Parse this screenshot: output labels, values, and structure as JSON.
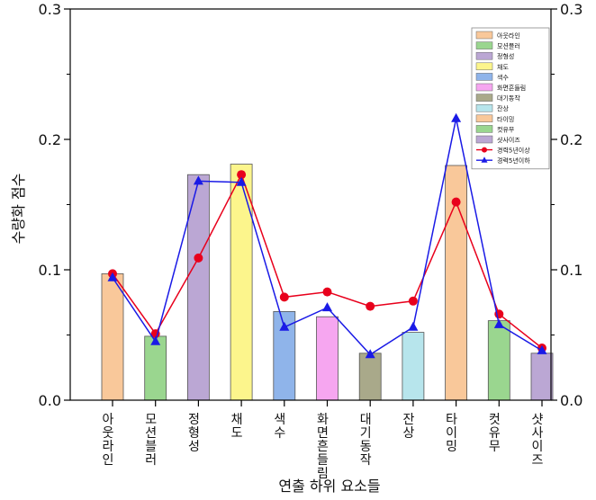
{
  "chart_data": {
    "type": "bar",
    "title": "",
    "xlabel": "연출 하위 요소들",
    "ylabel": "수량화 점수",
    "ylim": [
      0,
      0.3
    ],
    "yticks": [
      "0.0",
      "0.1",
      "0.2",
      "0.3"
    ],
    "right_axis": true,
    "grid": false,
    "legend_position": "top-right",
    "categories": [
      "아웃라인",
      "모션블러",
      "정형성",
      "채도",
      "색수",
      "화면흔들림",
      "대기동작",
      "잔상",
      "타이밍",
      "컷유무",
      "샷사이즈"
    ],
    "bars": {
      "values": [
        0.097,
        0.049,
        0.173,
        0.181,
        0.068,
        0.064,
        0.036,
        0.052,
        0.18,
        0.061,
        0.036
      ],
      "colors": [
        "#f9c89a",
        "#9ad68f",
        "#bba7d4",
        "#fcf58c",
        "#8fb4ea",
        "#f6a6f0",
        "#a9a98a",
        "#b7e5ec",
        "#f9c89a",
        "#9ad68f",
        "#bba7d4"
      ],
      "legend_labels": [
        "아웃라인",
        "모션블러",
        "정형성",
        "채도",
        "색수",
        "화면흔들림",
        "대기동작",
        "잔상",
        "타이밍",
        "컷유무",
        "샷사이즈"
      ]
    },
    "series": [
      {
        "name": "경력5년이상",
        "type": "line",
        "marker": "circle",
        "color": "#e8001c",
        "values": [
          0.097,
          0.051,
          0.109,
          0.173,
          0.079,
          0.083,
          0.072,
          0.076,
          0.152,
          0.066,
          0.04
        ]
      },
      {
        "name": "경력5년이하",
        "type": "line",
        "marker": "triangle",
        "color": "#1a1ae6",
        "values": [
          0.094,
          0.045,
          0.168,
          0.167,
          0.056,
          0.071,
          0.035,
          0.056,
          0.216,
          0.058,
          0.038
        ]
      }
    ]
  }
}
